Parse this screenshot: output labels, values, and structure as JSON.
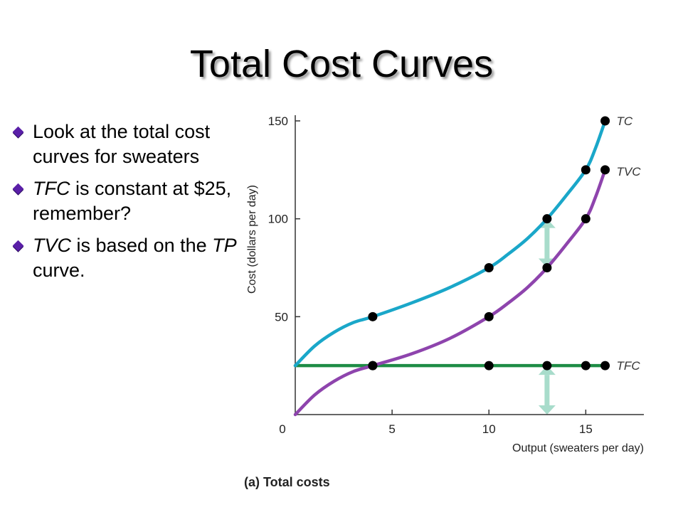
{
  "slide": {
    "title": "Total Cost Curves",
    "bullets": [
      {
        "parts": [
          {
            "text": "Look at the total cost curves for sweaters",
            "italic": false
          }
        ]
      },
      {
        "parts": [
          {
            "text": "TFC",
            "italic": true
          },
          {
            "text": " is constant at $25, remember?",
            "italic": false
          }
        ]
      },
      {
        "parts": [
          {
            "text": "TVC",
            "italic": true
          },
          {
            "text": " is based on the ",
            "italic": false
          },
          {
            "text": "TP",
            "italic": true
          },
          {
            "text": " curve.",
            "italic": false
          }
        ]
      }
    ]
  },
  "chart_data": {
    "type": "line",
    "caption": "(a) Total costs",
    "xlabel": "Output (sweaters per day)",
    "ylabel": "Cost (dollars per day)",
    "xlim": [
      0,
      18
    ],
    "ylim": [
      0,
      150
    ],
    "xticks": [
      0,
      5,
      10,
      15
    ],
    "yticks": [
      50,
      100,
      150
    ],
    "tick_labels_x": [
      "0",
      "5",
      "10",
      "15"
    ],
    "tick_labels_y": [
      "50",
      "100",
      "150"
    ],
    "grid": false,
    "legend": "inline labels at right end of curves",
    "series": [
      {
        "name": "TC",
        "color": "#1aa7c9",
        "curve": [
          [
            0,
            25
          ],
          [
            1,
            35
          ],
          [
            2,
            42
          ],
          [
            3,
            47
          ],
          [
            4,
            50
          ],
          [
            6,
            57
          ],
          [
            8,
            65
          ],
          [
            10,
            75
          ],
          [
            11,
            82
          ],
          [
            12,
            90
          ],
          [
            13,
            100
          ],
          [
            14,
            112
          ],
          [
            15,
            125
          ],
          [
            15.5,
            136
          ],
          [
            16,
            150
          ]
        ],
        "points": [
          [
            4,
            50
          ],
          [
            10,
            75
          ],
          [
            13,
            100
          ],
          [
            15,
            125
          ],
          [
            16,
            150
          ]
        ]
      },
      {
        "name": "TVC",
        "color": "#8e44ad",
        "curve": [
          [
            0,
            0
          ],
          [
            1,
            10
          ],
          [
            2,
            17
          ],
          [
            3,
            22
          ],
          [
            4,
            25
          ],
          [
            6,
            31
          ],
          [
            8,
            39
          ],
          [
            10,
            50
          ],
          [
            11,
            57
          ],
          [
            12,
            65
          ],
          [
            13,
            75
          ],
          [
            14,
            87
          ],
          [
            15,
            100
          ],
          [
            15.5,
            111
          ],
          [
            16,
            125
          ]
        ],
        "points": [
          [
            4,
            25
          ],
          [
            10,
            50
          ],
          [
            13,
            75
          ],
          [
            15,
            100
          ],
          [
            16,
            125
          ]
        ]
      },
      {
        "name": "TFC",
        "color": "#1e8c45",
        "curve": [
          [
            0,
            25
          ],
          [
            16,
            25
          ]
        ],
        "points": [
          [
            4,
            25
          ],
          [
            10,
            25
          ],
          [
            13,
            25
          ],
          [
            15,
            25
          ],
          [
            16,
            25
          ]
        ]
      }
    ],
    "annotations": [
      {
        "type": "double-arrow",
        "x": 13,
        "from": 75,
        "to": 100,
        "color": "#a8dccb"
      },
      {
        "type": "double-arrow",
        "x": 13,
        "from": 0,
        "to": 25,
        "color": "#a8dccb"
      }
    ]
  }
}
